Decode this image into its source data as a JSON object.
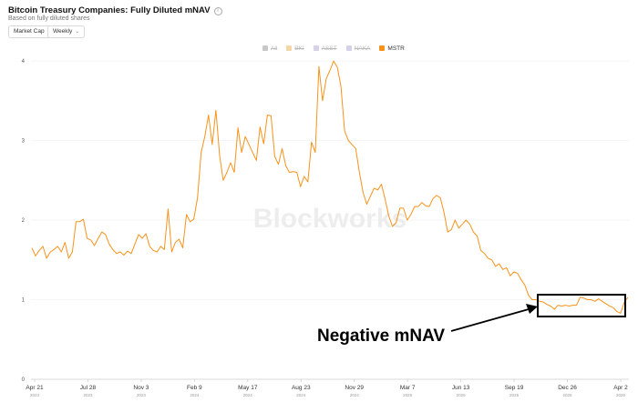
{
  "header": {
    "title": "Bitcoin Treasury Companies: Fully Diluted mNAV",
    "subtitle": "Based on fully diluted shares"
  },
  "controls": {
    "metric_select": "Market Cap",
    "interval_select": "Weekly"
  },
  "legend": [
    {
      "label": "All",
      "color": "#c8c8c8",
      "active": false
    },
    {
      "label": "BKI",
      "color": "#f5d6a8",
      "active": false
    },
    {
      "label": "ASST",
      "color": "#d6d0e8",
      "active": false
    },
    {
      "label": "NAKA",
      "color": "#d6d0e8",
      "active": false
    },
    {
      "label": "MSTR",
      "color": "#f7931a",
      "active": true
    }
  ],
  "watermark": "Blockworks",
  "annotation": {
    "text": "Negative mNAV"
  },
  "chart_data": {
    "type": "line",
    "title": "Bitcoin Treasury Companies: Fully Diluted mNAV",
    "xlabel": "",
    "ylabel": "",
    "ylim": [
      0,
      4
    ],
    "yticks": [
      0,
      1,
      2,
      3,
      4
    ],
    "x_tick_labels": [
      {
        "label": "Apr 21",
        "year": "2023"
      },
      {
        "label": "Jul 28",
        "year": "2023"
      },
      {
        "label": "Nov 3",
        "year": "2023"
      },
      {
        "label": "Feb 9",
        "year": "2024"
      },
      {
        "label": "May 17",
        "year": "2024"
      },
      {
        "label": "Aug 23",
        "year": "2024"
      },
      {
        "label": "Nov 29",
        "year": "2024"
      },
      {
        "label": "Mar 7",
        "year": "2025"
      },
      {
        "label": "Jun 13",
        "year": "2025"
      },
      {
        "label": "Sep 19",
        "year": "2025"
      },
      {
        "label": "Dec 26",
        "year": "2025"
      },
      {
        "label": "Apr 2",
        "year": "2026"
      }
    ],
    "series": [
      {
        "name": "MSTR",
        "color": "#f7931a",
        "values": [
          1.65,
          1.55,
          1.62,
          1.67,
          1.52,
          1.6,
          1.63,
          1.67,
          1.6,
          1.72,
          1.52,
          1.6,
          1.98,
          1.98,
          2.01,
          1.77,
          1.75,
          1.68,
          1.77,
          1.85,
          1.82,
          1.7,
          1.63,
          1.58,
          1.6,
          1.56,
          1.61,
          1.58,
          1.7,
          1.82,
          1.77,
          1.83,
          1.67,
          1.62,
          1.6,
          1.67,
          1.63,
          2.14,
          1.6,
          1.72,
          1.76,
          1.65,
          2.07,
          1.98,
          2.01,
          2.28,
          2.85,
          3.05,
          3.32,
          2.95,
          3.38,
          2.82,
          2.5,
          2.6,
          2.72,
          2.6,
          3.16,
          2.85,
          3.05,
          2.95,
          2.85,
          2.75,
          3.17,
          2.96,
          3.32,
          3.31,
          2.8,
          2.7,
          2.9,
          2.68,
          2.6,
          2.61,
          2.6,
          2.42,
          2.55,
          2.48,
          2.98,
          2.85,
          3.93,
          3.5,
          3.78,
          3.88,
          4.0,
          3.92,
          3.68,
          3.12,
          3.0,
          2.95,
          2.9,
          2.6,
          2.35,
          2.2,
          2.3,
          2.4,
          2.38,
          2.45,
          2.26,
          2.05,
          1.92,
          1.97,
          2.15,
          2.15,
          2.0,
          2.07,
          2.17,
          2.17,
          2.22,
          2.18,
          2.17,
          2.27,
          2.31,
          2.28,
          2.1,
          1.85,
          1.88,
          2.0,
          1.9,
          1.95,
          2.0,
          1.95,
          1.85,
          1.8,
          1.62,
          1.58,
          1.52,
          1.5,
          1.42,
          1.45,
          1.38,
          1.4,
          1.3,
          1.35,
          1.33,
          1.25,
          1.18,
          1.05,
          1.0,
          1.0,
          0.98,
          0.97,
          0.94,
          0.92,
          0.88,
          0.93,
          0.92,
          0.93,
          0.92,
          0.93,
          0.93,
          1.03,
          1.02,
          1.0,
          1.0,
          0.98,
          1.01,
          0.98,
          0.95,
          0.92,
          0.9,
          0.85,
          0.83,
          0.97,
          1.03
        ]
      }
    ]
  }
}
